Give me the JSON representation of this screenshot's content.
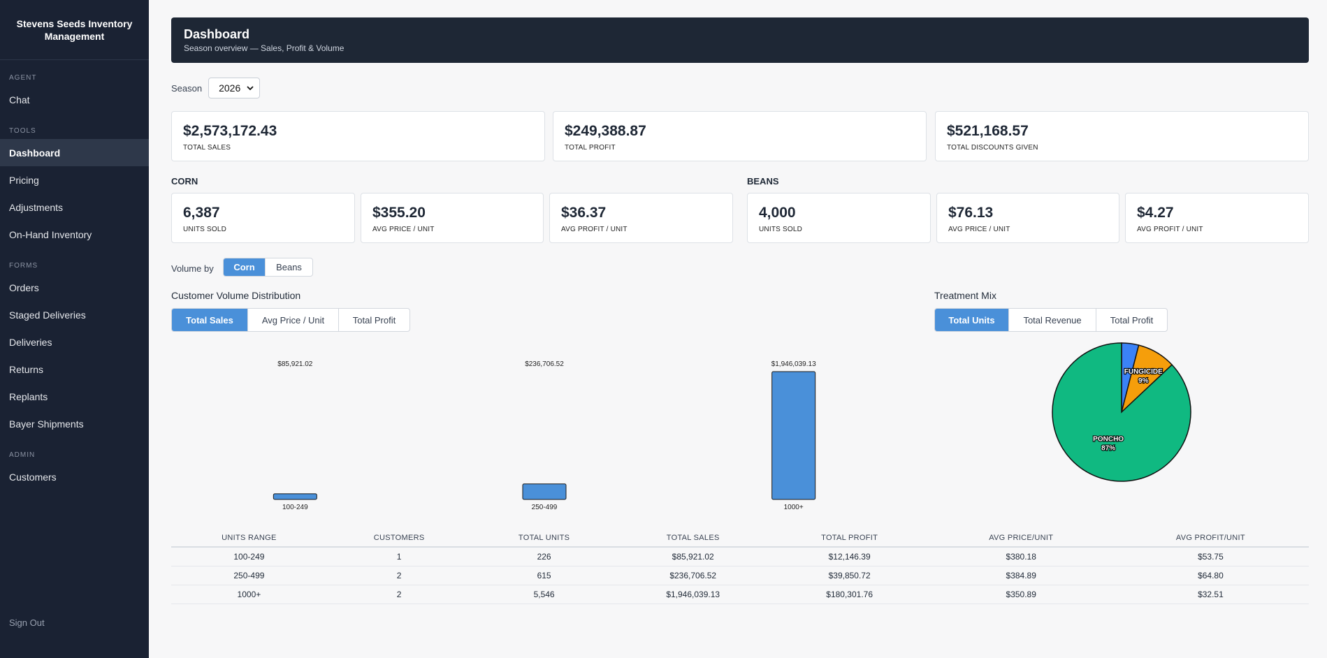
{
  "app": {
    "title": "Stevens Seeds Inventory Management"
  },
  "sidebar": {
    "sections": [
      {
        "label": "AGENT",
        "items": [
          {
            "label": "Chat",
            "active": false
          }
        ]
      },
      {
        "label": "TOOLS",
        "items": [
          {
            "label": "Dashboard",
            "active": true
          },
          {
            "label": "Pricing",
            "active": false
          },
          {
            "label": "Adjustments",
            "active": false
          },
          {
            "label": "On-Hand Inventory",
            "active": false
          }
        ]
      },
      {
        "label": "FORMS",
        "items": [
          {
            "label": "Orders",
            "active": false
          },
          {
            "label": "Staged Deliveries",
            "active": false
          },
          {
            "label": "Deliveries",
            "active": false
          },
          {
            "label": "Returns",
            "active": false
          },
          {
            "label": "Replants",
            "active": false
          },
          {
            "label": "Bayer Shipments",
            "active": false
          }
        ]
      },
      {
        "label": "ADMIN",
        "items": [
          {
            "label": "Customers",
            "active": false
          }
        ]
      }
    ],
    "sign_out": "Sign Out"
  },
  "header": {
    "title": "Dashboard",
    "subtitle": "Season overview — Sales, Profit & Volume"
  },
  "season": {
    "label": "Season",
    "selected": "2026"
  },
  "totals": [
    {
      "value": "$2,573,172.43",
      "label": "TOTAL SALES"
    },
    {
      "value": "$249,388.87",
      "label": "TOTAL PROFIT"
    },
    {
      "value": "$521,168.57",
      "label": "TOTAL DISCOUNTS GIVEN"
    }
  ],
  "corn": {
    "title": "CORN",
    "stats": [
      {
        "value": "6,387",
        "label": "UNITS SOLD"
      },
      {
        "value": "$355.20",
        "label": "AVG PRICE / UNIT"
      },
      {
        "value": "$36.37",
        "label": "AVG PROFIT / UNIT"
      }
    ]
  },
  "beans": {
    "title": "BEANS",
    "stats": [
      {
        "value": "4,000",
        "label": "UNITS SOLD"
      },
      {
        "value": "$76.13",
        "label": "AVG PRICE / UNIT"
      },
      {
        "value": "$4.27",
        "label": "AVG PROFIT / UNIT"
      }
    ]
  },
  "volume_by": {
    "label": "Volume by",
    "options": [
      {
        "label": "Corn",
        "active": true
      },
      {
        "label": "Beans",
        "active": false
      }
    ]
  },
  "distribution": {
    "title": "Customer Volume Distribution",
    "tabs": [
      {
        "label": "Total Sales",
        "active": true
      },
      {
        "label": "Avg Price / Unit",
        "active": false
      },
      {
        "label": "Total Profit",
        "active": false
      }
    ]
  },
  "treatment": {
    "title": "Treatment Mix",
    "tabs": [
      {
        "label": "Total Units",
        "active": true
      },
      {
        "label": "Total Revenue",
        "active": false
      },
      {
        "label": "Total Profit",
        "active": false
      }
    ]
  },
  "chart_data": [
    {
      "type": "bar",
      "categories": [
        "100-249",
        "250-499",
        "1000+"
      ],
      "values": [
        85921.02,
        236706.52,
        1946039.13
      ],
      "data_labels": [
        "$85,921.02",
        "$236,706.52",
        "$1,946,039.13"
      ],
      "title": "",
      "ylim": [
        0,
        1946039.13
      ],
      "grid": false,
      "colors": {
        "bar": "#4a90d9",
        "stroke": "#1a1a1a"
      }
    },
    {
      "type": "pie",
      "slices": [
        {
          "label": "",
          "value": 4,
          "color": "#3b82f6"
        },
        {
          "label": "FUNGICIDE",
          "value": 9,
          "pct": "9%",
          "color": "#f59e0b"
        },
        {
          "label": "PONCHO",
          "value": 87,
          "pct": "87%",
          "color": "#10b981"
        }
      ]
    }
  ],
  "volume_table": {
    "columns": [
      "UNITS RANGE",
      "CUSTOMERS",
      "TOTAL UNITS",
      "TOTAL SALES",
      "TOTAL PROFIT",
      "AVG PRICE/UNIT",
      "AVG PROFIT/UNIT"
    ],
    "rows": [
      [
        "100-249",
        "1",
        "226",
        "$85,921.02",
        "$12,146.39",
        "$380.18",
        "$53.75"
      ],
      [
        "250-499",
        "2",
        "615",
        "$236,706.52",
        "$39,850.72",
        "$384.89",
        "$64.80"
      ],
      [
        "1000+",
        "2",
        "5,546",
        "$1,946,039.13",
        "$180,301.76",
        "$350.89",
        "$32.51"
      ]
    ]
  }
}
